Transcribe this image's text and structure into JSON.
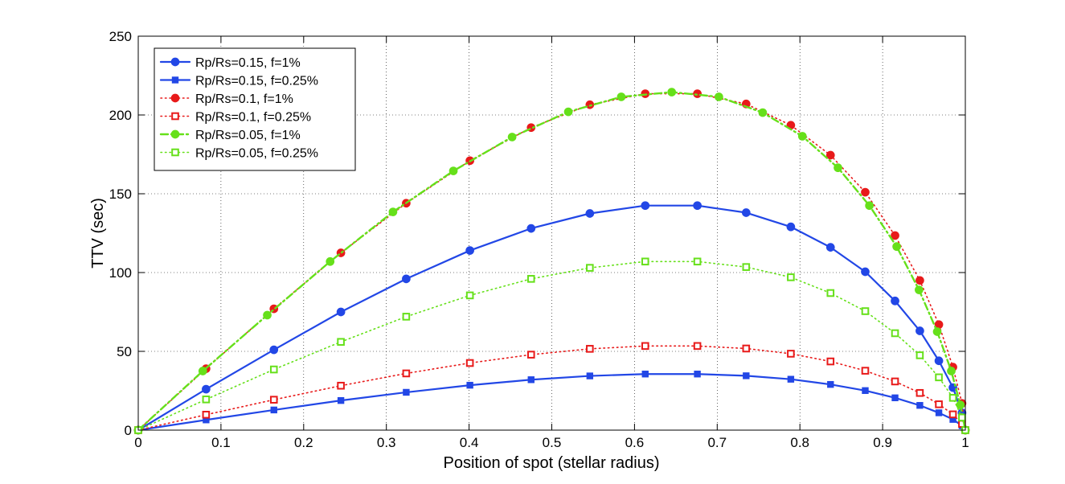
{
  "chart_data": {
    "type": "line",
    "title": "",
    "xlabel": "Position of spot (stellar radius)",
    "ylabel": "TTV (sec)",
    "xlim": [
      0,
      1
    ],
    "ylim": [
      0,
      250
    ],
    "xticks": [
      "0",
      "0.1",
      "0.2",
      "0.3",
      "0.4",
      "0.5",
      "0.6",
      "0.7",
      "0.8",
      "0.9",
      "1"
    ],
    "yticks": [
      "0",
      "50",
      "100",
      "150",
      "200",
      "250"
    ],
    "grid": true,
    "legend_position": "top-left",
    "colors": {
      "blue": "#2247e6",
      "red": "#e81a1a",
      "green": "#66e01a"
    },
    "series": [
      {
        "name": "Rp/Rs=0.15, f=1%",
        "color": "#2247e6",
        "line": "solid",
        "marker": "circle",
        "filled": true,
        "x": [
          0,
          0.082,
          0.164,
          0.245,
          0.324,
          0.401,
          0.475,
          0.546,
          0.613,
          0.676,
          0.735,
          0.789,
          0.837,
          0.879,
          0.915,
          0.945,
          0.968,
          0.985,
          0.996,
          1.0
        ],
        "y": [
          0,
          26,
          51,
          75,
          96,
          114,
          128,
          137.5,
          142.5,
          142.5,
          138,
          129,
          116,
          100.5,
          82,
          63,
          44,
          27,
          11,
          0
        ]
      },
      {
        "name": "Rp/Rs=0.15, f=0.25%",
        "color": "#2247e6",
        "line": "solid",
        "marker": "square",
        "filled": true,
        "x": [
          0,
          0.082,
          0.164,
          0.245,
          0.324,
          0.401,
          0.475,
          0.546,
          0.613,
          0.676,
          0.735,
          0.789,
          0.837,
          0.879,
          0.915,
          0.945,
          0.968,
          0.985,
          0.996,
          1.0
        ],
        "y": [
          0,
          6.5,
          12.8,
          18.8,
          24,
          28.5,
          32,
          34.4,
          35.6,
          35.6,
          34.5,
          32.3,
          29,
          25.1,
          20.5,
          15.7,
          11,
          6.8,
          2.8,
          0
        ]
      },
      {
        "name": "Rp/Rs=0.1, f=1%",
        "color": "#e81a1a",
        "line": "dotted",
        "marker": "circle",
        "filled": true,
        "x": [
          0,
          0.082,
          0.164,
          0.245,
          0.324,
          0.401,
          0.475,
          0.546,
          0.613,
          0.676,
          0.735,
          0.789,
          0.837,
          0.879,
          0.915,
          0.945,
          0.968,
          0.985,
          0.996,
          1.0
        ],
        "y": [
          0,
          39,
          77,
          112.5,
          144,
          171,
          192,
          206.5,
          213.5,
          213.5,
          207,
          193.5,
          174.5,
          151,
          123.5,
          95,
          67,
          40,
          17,
          0
        ]
      },
      {
        "name": "Rp/Rs=0.1, f=0.25%",
        "color": "#e81a1a",
        "line": "dotted",
        "marker": "square",
        "filled": false,
        "x": [
          0,
          0.082,
          0.164,
          0.245,
          0.324,
          0.401,
          0.475,
          0.546,
          0.613,
          0.676,
          0.735,
          0.789,
          0.837,
          0.879,
          0.915,
          0.945,
          0.968,
          0.985,
          0.996,
          1.0
        ],
        "y": [
          0,
          9.8,
          19.3,
          28.2,
          36,
          42.6,
          47.9,
          51.6,
          53.4,
          53.4,
          51.8,
          48.5,
          43.6,
          37.7,
          30.9,
          23.6,
          16.4,
          10,
          4,
          0
        ]
      },
      {
        "name": "Rp/Rs=0.05, f=1%",
        "color": "#66e01a",
        "line": "dashdot",
        "marker": "circle",
        "filled": true,
        "x": [
          0,
          0.078,
          0.156,
          0.232,
          0.308,
          0.381,
          0.452,
          0.52,
          0.584,
          0.645,
          0.702,
          0.755,
          0.803,
          0.846,
          0.884,
          0.917,
          0.944,
          0.966,
          0.983,
          0.994,
          1.0
        ],
        "y": [
          0,
          37.5,
          73,
          107,
          138.5,
          164.5,
          186,
          202,
          211.5,
          214.5,
          211.5,
          201.5,
          186.5,
          166.5,
          142.5,
          116.5,
          89,
          62.5,
          37.5,
          16,
          0
        ]
      },
      {
        "name": "Rp/Rs=0.05, f=0.25%",
        "color": "#66e01a",
        "line": "dotted",
        "marker": "square",
        "filled": false,
        "x": [
          0,
          0.082,
          0.164,
          0.245,
          0.324,
          0.401,
          0.475,
          0.546,
          0.613,
          0.676,
          0.735,
          0.789,
          0.837,
          0.879,
          0.915,
          0.945,
          0.968,
          0.985,
          0.996,
          1.0
        ],
        "y": [
          0,
          19.5,
          38.5,
          56,
          72,
          85.5,
          96,
          103,
          107,
          107,
          103.5,
          97,
          87,
          75.5,
          61.5,
          47.5,
          33.5,
          20.5,
          8,
          0
        ]
      }
    ]
  }
}
